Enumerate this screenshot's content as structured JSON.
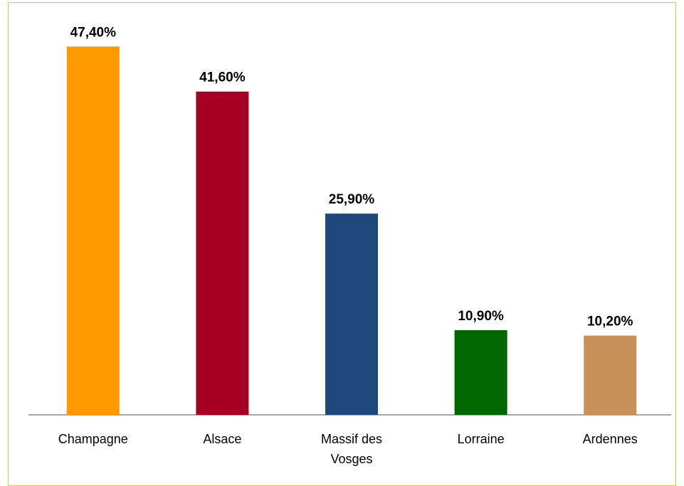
{
  "chart_data": {
    "type": "bar",
    "categories": [
      "Champagne",
      "Alsace",
      "Massif des Vosges",
      "Lorraine",
      "Ardennes"
    ],
    "values": [
      47.4,
      41.6,
      25.9,
      10.9,
      10.2
    ],
    "value_labels": [
      "47,40%",
      "41,60%",
      "25,90%",
      "10,90%",
      "10,20%"
    ],
    "colors": [
      "#ff9900",
      "#a50021",
      "#1f497d",
      "#006600",
      "#c8915a"
    ],
    "ylim": [
      0,
      50
    ]
  }
}
